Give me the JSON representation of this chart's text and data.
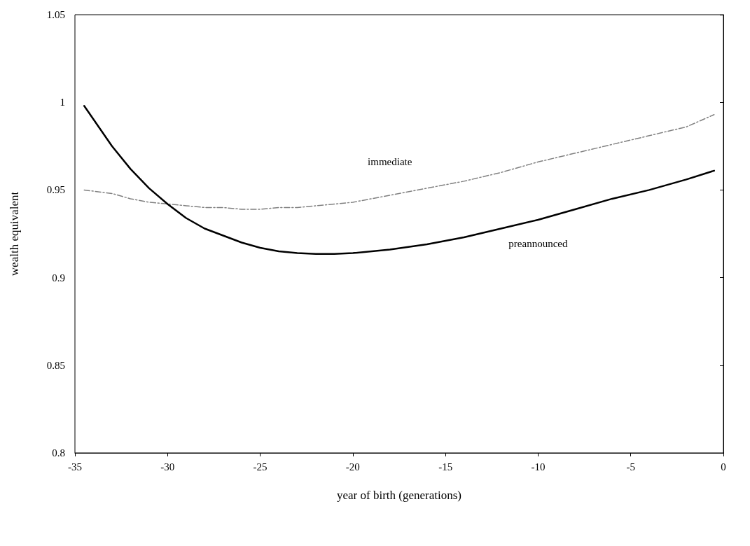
{
  "chart_data": {
    "type": "line",
    "xlabel": "year of birth (generations)",
    "ylabel": "wealth equivalent",
    "series": [
      {
        "name": "immediate",
        "color": "#808080",
        "line_style": "dashed",
        "x": [
          -34.5,
          -33,
          -32,
          -31,
          -30,
          -29,
          -28,
          -27,
          -26,
          -25,
          -24,
          -23,
          -22,
          -21,
          -20,
          -18,
          -16,
          -14,
          -12,
          -10,
          -8,
          -6,
          -4,
          -2,
          -0.5
        ],
        "values": [
          0.95,
          0.948,
          0.945,
          0.943,
          0.942,
          0.941,
          0.94,
          0.94,
          0.939,
          0.939,
          0.94,
          0.94,
          0.941,
          0.942,
          0.943,
          0.947,
          0.951,
          0.955,
          0.96,
          0.966,
          0.971,
          0.976,
          0.981,
          0.986,
          0.993
        ]
      },
      {
        "name": "preannounced",
        "color": "#000000",
        "line_style": "solid",
        "x": [
          -34.5,
          -33,
          -32,
          -31,
          -30,
          -29,
          -28,
          -27,
          -26,
          -25,
          -24,
          -23,
          -22,
          -21,
          -20,
          -18,
          -16,
          -14,
          -12,
          -10,
          -8,
          -6,
          -4,
          -2,
          -0.5
        ],
        "values": [
          0.998,
          0.975,
          0.962,
          0.951,
          0.942,
          0.934,
          0.928,
          0.924,
          0.92,
          0.917,
          0.915,
          0.914,
          0.9135,
          0.9135,
          0.914,
          0.916,
          0.919,
          0.923,
          0.928,
          0.933,
          0.939,
          0.945,
          0.95,
          0.956,
          0.961
        ]
      }
    ],
    "xlim": [
      -35,
      0
    ],
    "xticks": [
      -35,
      -30,
      -25,
      -20,
      -15,
      -10,
      -5,
      0
    ],
    "ylim": [
      0.8,
      1.05
    ],
    "yticks": [
      0.8,
      0.85,
      0.9,
      0.95,
      1,
      1.05
    ],
    "grid": false,
    "legend": false,
    "marker": "none"
  }
}
